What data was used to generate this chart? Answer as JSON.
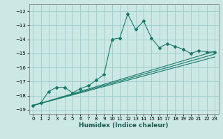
{
  "xlabel": "Humidex (Indice chaleur)",
  "bg_color": "#cce8e4",
  "grid_color": "#99cccc",
  "line_color": "#1a7a6a",
  "xlim": [
    -0.5,
    23.5
  ],
  "ylim": [
    -19.3,
    -11.5
  ],
  "xticks": [
    0,
    1,
    2,
    3,
    4,
    5,
    6,
    7,
    8,
    9,
    10,
    11,
    12,
    13,
    14,
    15,
    16,
    17,
    18,
    19,
    20,
    21,
    22,
    23
  ],
  "yticks": [
    -19,
    -18,
    -17,
    -16,
    -15,
    -14,
    -13,
    -12
  ],
  "series_x": [
    0,
    1,
    2,
    3,
    4,
    5,
    6,
    7,
    8,
    9,
    10,
    11,
    12,
    13,
    14,
    15,
    16,
    17,
    18,
    19,
    20,
    21,
    22,
    23
  ],
  "series_y": [
    -18.7,
    -18.5,
    -17.7,
    -17.4,
    -17.4,
    -17.8,
    -17.5,
    -17.3,
    -16.9,
    -16.5,
    -14.0,
    -13.9,
    -12.2,
    -13.3,
    -12.7,
    -13.9,
    -14.6,
    -14.3,
    -14.5,
    -14.7,
    -15.0,
    -14.8,
    -14.9,
    -14.9
  ],
  "line2_x": [
    0,
    23
  ],
  "line2_y": [
    -18.7,
    -14.85
  ],
  "line3_x": [
    0,
    23
  ],
  "line3_y": [
    -18.7,
    -15.05
  ],
  "line4_x": [
    0,
    23
  ],
  "line4_y": [
    -18.7,
    -15.25
  ]
}
